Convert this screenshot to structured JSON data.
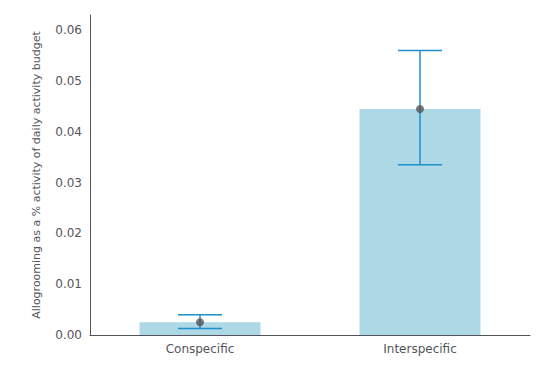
{
  "chart_data": {
    "type": "bar",
    "categories": [
      "Conspecific",
      "Interspecific"
    ],
    "ylabel": "Allogrooming as a % activity of daily activity budget",
    "ylim": [
      0,
      0.063
    ],
    "yticks": [
      {
        "value": 0,
        "label": "0.00"
      },
      0.01,
      0.02,
      0.03,
      0.04,
      0.05,
      0.06
    ],
    "grid": false,
    "series": [
      {
        "type": "bar",
        "values": [
          0.0025,
          0.0445
        ],
        "color": "#add8e6",
        "error_bars": {
          "upper": [
            0.0015,
            0.0115
          ],
          "lower": [
            0.0012,
            0.011
          ],
          "color": "#1e8fcc"
        }
      },
      {
        "type": "scatter",
        "values": [
          0.0025,
          0.0445
        ],
        "color": "#555555",
        "marker": "circle"
      }
    ]
  }
}
